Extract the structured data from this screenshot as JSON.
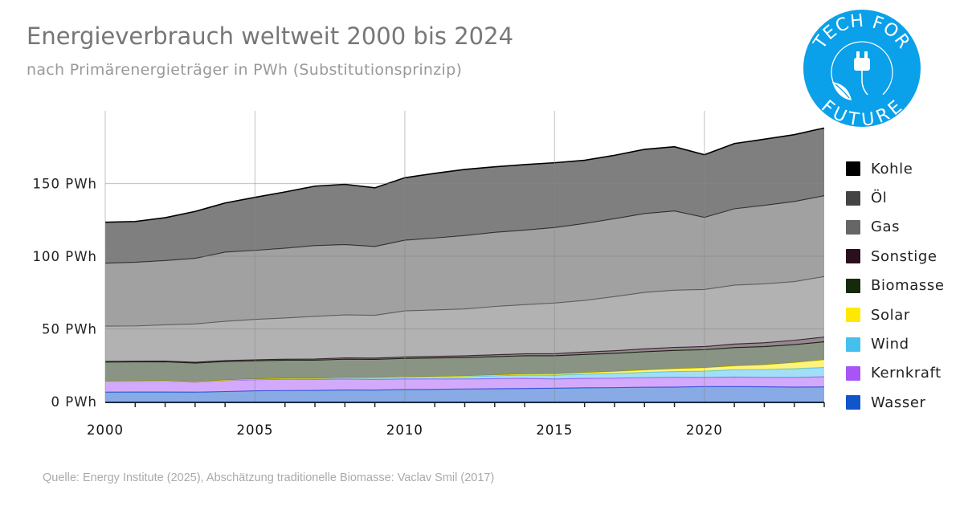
{
  "title": "Energieverbrauch weltweit 2000 bis 2024",
  "subtitle": "nach Primärenergieträger in PWh (Substitutionsprinzip)",
  "source": "Quelle: Energy Institute (2025), Abschätzung traditionelle Biomasse: Vaclav Smil (2017)",
  "logo": {
    "top_text": "TECH FOR",
    "bottom_text": "FUTURE",
    "color": "#0aa0ea",
    "icon": "plug-leaf-icon"
  },
  "chart_data": {
    "type": "area",
    "stacked": true,
    "title": "Energieverbrauch weltweit 2000 bis 2024",
    "xlabel": "",
    "ylabel": "",
    "x": [
      2000,
      2001,
      2002,
      2003,
      2004,
      2005,
      2006,
      2007,
      2008,
      2009,
      2010,
      2011,
      2012,
      2013,
      2014,
      2015,
      2016,
      2017,
      2018,
      2019,
      2020,
      2021,
      2022,
      2023,
      2024
    ],
    "xlim": [
      2000,
      2024
    ],
    "ylim": [
      0,
      190
    ],
    "x_ticks": [
      2000,
      2005,
      2010,
      2015,
      2020
    ],
    "x_tick_labels": [
      "2000",
      "2005",
      "2010",
      "2015",
      "2020"
    ],
    "y_ticks": [
      0,
      50,
      100,
      150
    ],
    "y_tick_labels": [
      "0 PWh",
      "50 PWh",
      "100 PWh",
      "150 PWh"
    ],
    "grid": true,
    "legend_position": "right",
    "series": [
      {
        "name": "Wasser",
        "color": "#1155cc",
        "values": [
          6.5,
          6.6,
          6.6,
          6.5,
          6.9,
          7.4,
          7.6,
          7.7,
          8.0,
          7.9,
          8.3,
          8.4,
          8.7,
          8.9,
          9.0,
          9.2,
          9.5,
          9.6,
          9.9,
          10.0,
          10.3,
          10.3,
          10.2,
          10.0,
          10.1
        ]
      },
      {
        "name": "Kernkraft",
        "color": "#a855f7",
        "values": [
          7.3,
          7.4,
          7.5,
          6.8,
          7.6,
          7.7,
          7.8,
          7.6,
          7.6,
          7.4,
          7.3,
          7.2,
          6.9,
          6.9,
          7.0,
          6.4,
          6.5,
          6.5,
          6.6,
          6.7,
          6.3,
          6.6,
          6.4,
          6.6,
          7.0
        ]
      },
      {
        "name": "Wind",
        "color": "#45c0ee",
        "values": [
          0.1,
          0.1,
          0.2,
          0.2,
          0.3,
          0.4,
          0.5,
          0.6,
          0.8,
          1.0,
          1.2,
          1.4,
          1.7,
          2.0,
          2.3,
          2.6,
          2.9,
          3.3,
          3.6,
          4.0,
          4.4,
          5.0,
          5.5,
          6.0,
          6.4
        ]
      },
      {
        "name": "Solar",
        "color": "#ffe800",
        "values": [
          0,
          0,
          0,
          0,
          0,
          0,
          0,
          0.01,
          0.05,
          0.05,
          0.1,
          0.2,
          0.3,
          0.4,
          0.6,
          0.8,
          1.0,
          1.3,
          1.6,
          1.9,
          2.2,
          2.6,
          3.2,
          4.2,
          5.2
        ]
      },
      {
        "name": "Biomasse",
        "color": "#142a0a",
        "values": [
          13.3,
          13.2,
          13.1,
          13.0,
          12.8,
          12.6,
          12.6,
          12.6,
          12.7,
          12.7,
          12.8,
          12.8,
          12.7,
          12.7,
          12.6,
          12.5,
          12.5,
          12.5,
          12.6,
          12.6,
          12.5,
          12.6,
          12.5,
          12.4,
          12.4
        ]
      },
      {
        "name": "Sonstige",
        "color": "#2a0f1f",
        "values": [
          0.5,
          0.5,
          0.5,
          0.6,
          0.6,
          0.7,
          0.7,
          0.8,
          0.9,
          0.9,
          1.0,
          1.1,
          1.2,
          1.3,
          1.4,
          1.5,
          1.7,
          1.8,
          2.0,
          2.1,
          2.2,
          2.5,
          2.7,
          3.0,
          3.3
        ]
      },
      {
        "name": "Gas",
        "color": "#666666",
        "values": [
          24.2,
          24.2,
          24.9,
          26.3,
          27.0,
          27.7,
          28.3,
          29.3,
          29.6,
          29.4,
          31.7,
          31.9,
          32.2,
          33.2,
          33.8,
          34.8,
          35.5,
          37.2,
          38.8,
          39.3,
          39.2,
          40.5,
          40.5,
          40.3,
          41.6
        ]
      },
      {
        "name": "Öl",
        "color": "#444444",
        "values": [
          43.3,
          43.8,
          44.2,
          45.1,
          47.6,
          47.5,
          48.0,
          48.7,
          48.3,
          47.3,
          48.6,
          49.5,
          50.5,
          51.0,
          51.2,
          51.9,
          52.9,
          53.6,
          54.2,
          54.5,
          49.6,
          52.5,
          54.0,
          55.1,
          55.6
        ]
      },
      {
        "name": "Kohle",
        "color": "#000000",
        "values": [
          28.2,
          28.1,
          29.5,
          32.3,
          33.8,
          36.5,
          38.7,
          40.9,
          41.5,
          40.4,
          43.0,
          44.5,
          45.5,
          45.1,
          45.1,
          44.6,
          43.5,
          43.6,
          44.2,
          44.2,
          43.1,
          44.9,
          45.5,
          46.0,
          46.6
        ]
      }
    ],
    "legend_order": [
      "Kohle",
      "Öl",
      "Gas",
      "Sonstige",
      "Biomasse",
      "Solar",
      "Wind",
      "Kernkraft",
      "Wasser"
    ]
  }
}
